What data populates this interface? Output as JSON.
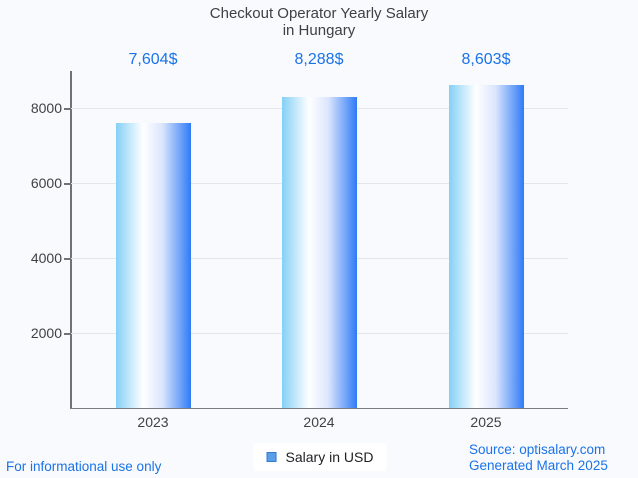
{
  "title": {
    "line1": "Checkout Operator Yearly Salary",
    "line2": "in Hungary"
  },
  "legend": {
    "label": "Salary in USD",
    "swatch_fill": "#57a0e8",
    "swatch_border": "#3a77d2"
  },
  "footer": {
    "left": "For informational use only",
    "source": "Source: optisalary.com",
    "generated": "Generated March 2025"
  },
  "colors": {
    "accent_blue": "#1a73e8",
    "background": "#f9fafd",
    "axis": "#6f7377",
    "gridline": "#e4e6e9",
    "text_dark": "#3f4245"
  },
  "chart_data": {
    "type": "bar",
    "title": "Checkout Operator Yearly Salary in Hungary",
    "categories": [
      "2023",
      "2024",
      "2025"
    ],
    "values": [
      7604,
      8288,
      8603
    ],
    "value_labels": [
      "7,604$",
      "8,288$",
      "8,603$"
    ],
    "series_name": "Salary in USD",
    "xlabel": "",
    "ylabel": "",
    "ylim": [
      0,
      9000
    ],
    "yticks": [
      2000,
      4000,
      6000,
      8000
    ],
    "grid": true,
    "legend_position": "bottom",
    "bar_gradient": [
      "#84d0f6",
      "#ffffff",
      "#dbe5fc",
      "#2e7bf7"
    ]
  }
}
